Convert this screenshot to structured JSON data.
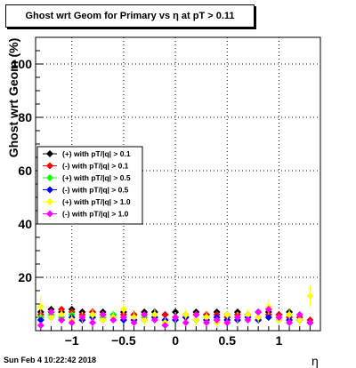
{
  "title": "Ghost wrt Geom for Primary vs   η at pT > 0.11",
  "ylabel": "Ghost wrt Geom (%)",
  "xlabel": "η",
  "footer": "Sun Feb  4 10:22:42 2018",
  "chart_data": {
    "type": "scatter",
    "xlim": [
      -1.35,
      1.4
    ],
    "ylim": [
      0,
      110
    ],
    "x_ticks": [
      -1,
      -0.5,
      0,
      0.5,
      1
    ],
    "x_tick_labels": [
      "−1",
      "−0.5",
      "0",
      "0.5",
      "1"
    ],
    "y_ticks": [
      20,
      40,
      60,
      80,
      100
    ],
    "y_tick_labels": [
      "20",
      "40",
      "60",
      "80",
      "100"
    ],
    "grid": true,
    "legend": "left-middle",
    "series": [
      {
        "name": "(+) with pT/|q| > 0.1",
        "color": "#000000",
        "x": [
          -1.3,
          -1.2,
          -1.1,
          -1.0,
          -0.9,
          -0.8,
          -0.7,
          -0.6,
          -0.5,
          -0.4,
          -0.3,
          -0.2,
          -0.1,
          0.0,
          0.1,
          0.2,
          0.3,
          0.4,
          0.5,
          0.6,
          0.7,
          0.8,
          0.9,
          1.0,
          1.1,
          1.2,
          1.3
        ],
        "y": [
          7,
          8,
          7,
          8,
          7,
          7,
          7,
          6,
          7,
          6,
          7,
          7,
          6,
          7,
          6,
          7,
          6,
          7,
          6,
          7,
          6,
          7,
          7,
          6,
          7,
          4,
          3
        ]
      },
      {
        "name": "(-) with pT/|q| > 0.1",
        "color": "#ff0000",
        "x": [
          -1.3,
          -1.2,
          -1.1,
          -1.0,
          -0.9,
          -0.8,
          -0.7,
          -0.6,
          -0.5,
          -0.4,
          -0.3,
          -0.2,
          -0.1,
          0.0,
          0.1,
          0.2,
          0.3,
          0.4,
          0.5,
          0.6,
          0.7,
          0.8,
          0.9,
          1.0,
          1.1,
          1.2,
          1.3
        ],
        "y": [
          6,
          7,
          8,
          7,
          6,
          7,
          6,
          5,
          6,
          6,
          6,
          5,
          6,
          5,
          5,
          6,
          6,
          6,
          5,
          6,
          6,
          5,
          6,
          6,
          5,
          5,
          4
        ]
      },
      {
        "name": "(+) with pT/|q| > 0.5",
        "color": "#00ff00",
        "x": [
          -1.3,
          -1.2,
          -1.1,
          -1.0,
          -0.9,
          -0.8,
          -0.7,
          -0.6,
          -0.5,
          -0.4,
          -0.3,
          -0.2,
          -0.1,
          0.0,
          0.1,
          0.2,
          0.3,
          0.4,
          0.5,
          0.6,
          0.7,
          0.8,
          0.9,
          1.0,
          1.1,
          1.2,
          1.3
        ],
        "y": [
          5,
          6,
          5,
          6,
          5,
          6,
          5,
          6,
          5,
          4,
          5,
          5,
          4,
          5,
          5,
          4,
          5,
          5,
          4,
          5,
          5,
          4,
          5,
          5,
          6,
          4,
          3
        ]
      },
      {
        "name": "(-) with pT/|q| > 0.5",
        "color": "#0000ff",
        "x": [
          -1.3,
          -1.2,
          -1.1,
          -1.0,
          -0.9,
          -0.8,
          -0.7,
          -0.6,
          -0.5,
          -0.4,
          -0.3,
          -0.2,
          -0.1,
          0.0,
          0.1,
          0.2,
          0.3,
          0.4,
          0.5,
          0.6,
          0.7,
          0.8,
          0.9,
          1.0,
          1.1,
          1.2,
          1.3
        ],
        "y": [
          4,
          5,
          4,
          5,
          4,
          5,
          4,
          5,
          4,
          4,
          4,
          5,
          4,
          4,
          5,
          4,
          4,
          5,
          4,
          4,
          5,
          4,
          5,
          4,
          4,
          4,
          3
        ]
      },
      {
        "name": "(+) with pT/|q| > 1.0",
        "color": "#ffff00",
        "x": [
          -1.3,
          -1.2,
          -1.1,
          -1.0,
          -0.9,
          -0.8,
          -0.7,
          -0.6,
          -0.5,
          -0.4,
          -0.3,
          -0.2,
          -0.1,
          0.0,
          0.1,
          0.2,
          0.3,
          0.4,
          0.5,
          0.6,
          0.7,
          0.8,
          0.9,
          1.0,
          1.1,
          1.2,
          1.3
        ],
        "y": [
          9,
          5,
          6,
          4,
          5,
          6,
          4,
          5,
          8,
          5,
          4,
          6,
          3,
          5,
          6,
          4,
          5,
          3,
          6,
          5,
          6,
          5,
          9,
          4,
          6,
          4,
          13
        ],
        "err": [
          4,
          2,
          2,
          2,
          2,
          2,
          2,
          2,
          2,
          2,
          2,
          2,
          2,
          2,
          2,
          2,
          2,
          2,
          2,
          2,
          2,
          2,
          3,
          2,
          2,
          2,
          4
        ]
      },
      {
        "name": "(-) with pT/|q| > 1.0",
        "color": "#ff00ff",
        "x": [
          -1.3,
          -1.2,
          -1.1,
          -1.0,
          -0.9,
          -0.8,
          -0.7,
          -0.6,
          -0.5,
          -0.4,
          -0.3,
          -0.2,
          -0.1,
          0.0,
          0.1,
          0.2,
          0.3,
          0.4,
          0.5,
          0.6,
          0.7,
          0.8,
          0.9,
          1.0,
          1.1,
          1.2,
          1.3
        ],
        "y": [
          2,
          7,
          4,
          3,
          5,
          3,
          6,
          4,
          5,
          3,
          6,
          4,
          2,
          5,
          3,
          6,
          3,
          4,
          3,
          5,
          4,
          7,
          8,
          5,
          3,
          6,
          3
        ]
      }
    ]
  }
}
